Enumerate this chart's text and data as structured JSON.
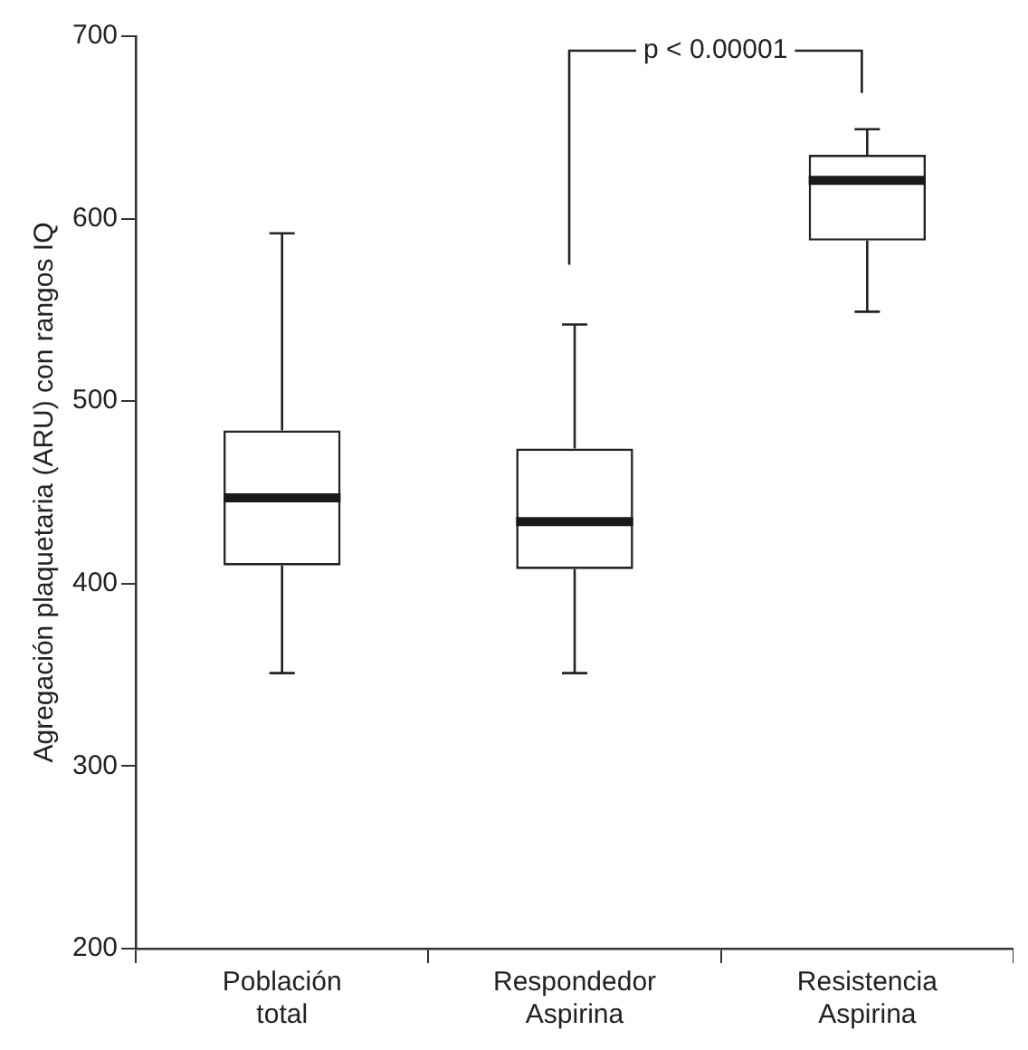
{
  "chart_data": {
    "type": "box",
    "ylabel": "Agregación plaquetaria (ARU) con rangos IQ",
    "categories": [
      "Población total",
      "Respondedor Aspirina",
      "Resistencia Aspirina"
    ],
    "boxes": [
      {
        "low": 351,
        "q1": 410,
        "median": 447,
        "q3": 484,
        "high": 592
      },
      {
        "low": 351,
        "q1": 408,
        "median": 434,
        "q3": 474,
        "high": 542
      },
      {
        "low": 549,
        "q1": 588,
        "median": 621,
        "q3": 635,
        "high": 649
      }
    ],
    "ylim": [
      200,
      700
    ],
    "yticks": [
      200,
      300,
      400,
      500,
      600,
      700
    ],
    "grid": false,
    "legend": false,
    "annotations": [
      "p < 0.00001"
    ]
  }
}
